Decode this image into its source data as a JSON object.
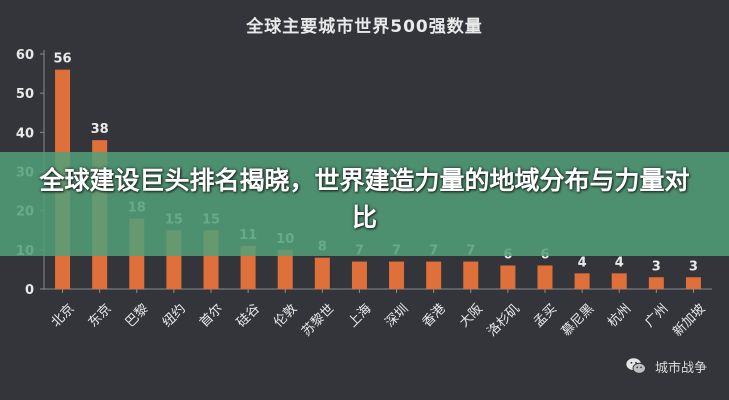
{
  "banner": {
    "text": "全球建设巨头排名揭晓，世界建造力量的地域分布与力量对比"
  },
  "watermark": {
    "text": "城市战争",
    "icon": "wechat-icon"
  },
  "colors": {
    "background": "#33353a",
    "bar": "#e0703a",
    "text": "#e9e9e9",
    "banner": "#52a078"
  },
  "chart_data": {
    "type": "bar",
    "title": "全球主要城市世界500强数量",
    "xlabel": "",
    "ylabel": "",
    "ylim": [
      0,
      60
    ],
    "yticks": [
      0,
      10,
      20,
      30,
      40,
      50,
      60
    ],
    "grid": false,
    "legend": "none",
    "categories": [
      "北京",
      "东京",
      "巴黎",
      "纽约",
      "首尔",
      "硅谷",
      "伦敦",
      "苏黎世",
      "上海",
      "深圳",
      "香港",
      "大阪",
      "洛杉矶",
      "孟买",
      "慕尼黑",
      "杭州",
      "广州",
      "新加坡"
    ],
    "values": [
      56,
      38,
      18,
      15,
      15,
      11,
      10,
      8,
      7,
      7,
      7,
      7,
      6,
      6,
      4,
      4,
      3,
      3
    ]
  }
}
